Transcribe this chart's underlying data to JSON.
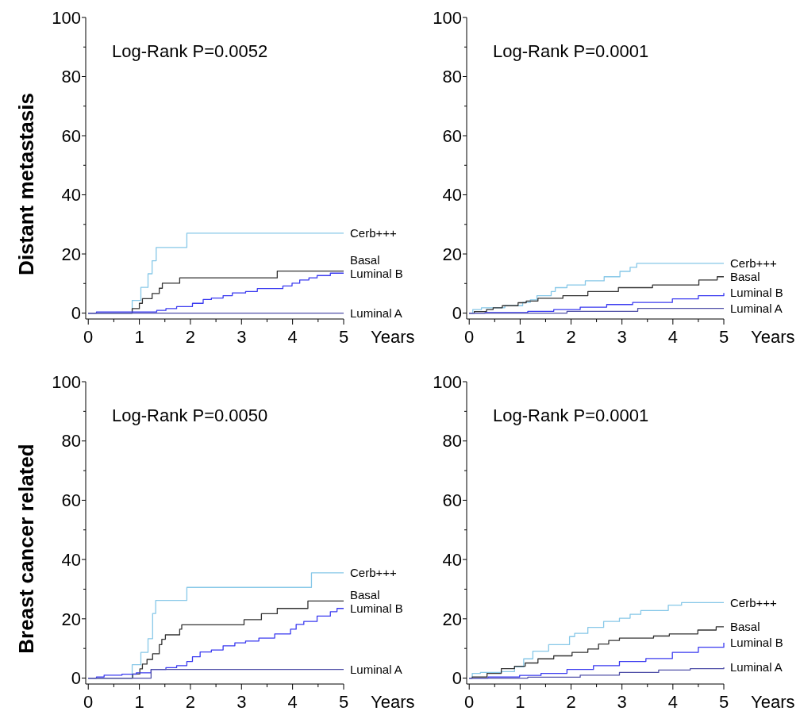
{
  "chart_data": [
    {
      "type": "step",
      "ylabel": "Distant metastasis",
      "xlabel": "Years",
      "annotations": [
        "Log-Rank  P=0.0052"
      ],
      "xlim": [
        -0.05,
        5
      ],
      "ylim": [
        -2,
        100
      ],
      "xticks": [
        0,
        {
          "value": 0.5,
          "label": null
        },
        1,
        {
          "value": 1.5,
          "label": null
        },
        2,
        {
          "value": 2.5,
          "label": null
        },
        3,
        {
          "value": 3.5,
          "label": null
        },
        4,
        {
          "value": 4.5,
          "label": null
        },
        5
      ],
      "yticks": [
        0,
        {
          "value": 10,
          "label": null
        },
        20,
        {
          "value": 30,
          "label": null
        },
        40,
        {
          "value": 50,
          "label": null
        },
        60,
        {
          "value": 70,
          "label": null
        },
        80,
        {
          "value": 90,
          "label": null
        },
        100
      ],
      "grid": false,
      "legend": false,
      "marker": "none",
      "line_style": "solid",
      "series": [
        {
          "name": "Cerb+++",
          "color": "#87c8e8",
          "x": [
            0,
            0.86,
            1.03,
            1.17,
            1.25,
            1.33,
            1.93,
            5
          ],
          "values": [
            0,
            4.3,
            8.7,
            13.3,
            17.7,
            22.2,
            27,
            27
          ]
        },
        {
          "name": "Basal",
          "color": "#333333",
          "x": [
            0,
            0.86,
            1.0,
            1.06,
            1.25,
            1.39,
            1.45,
            1.79,
            3.7,
            5
          ],
          "values": [
            0,
            1.5,
            3.3,
            4.9,
            6.6,
            8.4,
            10.1,
            11.9,
            14.2,
            14.2
          ]
        },
        {
          "name": "Luminal B",
          "color": "#3a3af0",
          "x": [
            0,
            0.16,
            1.34,
            1.52,
            1.73,
            2.04,
            2.25,
            2.41,
            2.64,
            2.82,
            3.08,
            3.31,
            3.81,
            3.99,
            4.14,
            4.32,
            4.48,
            4.74,
            5
          ],
          "values": [
            0,
            0.4,
            0.9,
            1.5,
            2.2,
            3.3,
            4.6,
            5.1,
            5.9,
            6.8,
            7.3,
            8.3,
            9.2,
            10.1,
            11.2,
            11.9,
            12.7,
            13.5,
            13.5
          ]
        },
        {
          "name": "Luminal A",
          "color": "#5050a8",
          "x": [
            0,
            5
          ],
          "values": [
            0,
            0
          ]
        }
      ]
    },
    {
      "type": "step",
      "xlabel": "Years",
      "annotations": [
        "Log-Rank  P=0.0001"
      ],
      "xlim": [
        -0.05,
        5
      ],
      "ylim": [
        -2,
        100
      ],
      "xticks": [
        0,
        {
          "value": 0.5,
          "label": null
        },
        1,
        {
          "value": 1.5,
          "label": null
        },
        2,
        {
          "value": 2.5,
          "label": null
        },
        3,
        {
          "value": 3.5,
          "label": null
        },
        4,
        {
          "value": 4.5,
          "label": null
        },
        5
      ],
      "yticks": [
        0,
        {
          "value": 10,
          "label": null
        },
        20,
        {
          "value": 30,
          "label": null
        },
        40,
        {
          "value": 50,
          "label": null
        },
        60,
        {
          "value": 70,
          "label": null
        },
        80,
        {
          "value": 90,
          "label": null
        },
        100
      ],
      "grid": false,
      "legend": false,
      "marker": "none",
      "line_style": "solid",
      "series": [
        {
          "name": "Cerb+++",
          "color": "#87c8e8",
          "x": [
            0,
            0.07,
            0.24,
            0.7,
            1.05,
            1.2,
            1.33,
            1.61,
            1.69,
            1.92,
            2.28,
            2.65,
            2.96,
            3.16,
            3.29,
            5
          ],
          "values": [
            0,
            1.2,
            1.8,
            2.5,
            3.6,
            4.5,
            5.9,
            7.3,
            8.6,
            9.5,
            10.9,
            12.3,
            14.1,
            15.5,
            16.8,
            16.8
          ]
        },
        {
          "name": "Basal",
          "color": "#333333",
          "x": [
            0,
            0.1,
            0.34,
            0.47,
            0.65,
            0.96,
            1.12,
            1.35,
            1.84,
            2.33,
            2.93,
            3.6,
            4.51,
            4.87,
            5
          ],
          "values": [
            0,
            0.5,
            1.2,
            1.8,
            2.5,
            3.5,
            4.1,
            5,
            5.9,
            7.3,
            8.6,
            9.5,
            11.2,
            12.3,
            12.3
          ]
        },
        {
          "name": "Luminal B",
          "color": "#3a3af0",
          "x": [
            0,
            0.31,
            1.15,
            1.66,
            2.18,
            2.7,
            3.21,
            3.99,
            4.5,
            5
          ],
          "values": [
            0,
            0.2,
            0.6,
            1.2,
            2,
            2.9,
            3.6,
            4.8,
            5.9,
            6.8
          ]
        },
        {
          "name": "Luminal A",
          "color": "#5050a8",
          "x": [
            0,
            1.92,
            3.31,
            5
          ],
          "values": [
            0,
            0.6,
            1.6,
            1.6
          ]
        }
      ]
    },
    {
      "type": "step",
      "ylabel": "Breast cancer related",
      "xlabel": "Years",
      "annotations": [
        "Log-Rank  P=0.0050"
      ],
      "xlim": [
        -0.05,
        5
      ],
      "ylim": [
        -2,
        100
      ],
      "xticks": [
        0,
        {
          "value": 0.5,
          "label": null
        },
        1,
        {
          "value": 1.5,
          "label": null
        },
        2,
        {
          "value": 2.5,
          "label": null
        },
        3,
        {
          "value": 3.5,
          "label": null
        },
        4,
        {
          "value": 4.5,
          "label": null
        },
        5
      ],
      "yticks": [
        0,
        {
          "value": 10,
          "label": null
        },
        20,
        {
          "value": 30,
          "label": null
        },
        40,
        {
          "value": 50,
          "label": null
        },
        60,
        {
          "value": 70,
          "label": null
        },
        80,
        {
          "value": 90,
          "label": null
        },
        100
      ],
      "grid": false,
      "legend": false,
      "marker": "none",
      "line_style": "solid",
      "series": [
        {
          "name": "Cerb+++",
          "color": "#87c8e8",
          "x": [
            0,
            0.86,
            1.03,
            1.17,
            1.26,
            1.32,
            1.93,
            4.37,
            5
          ],
          "values": [
            0,
            4.5,
            8.7,
            13.3,
            21.8,
            26.2,
            30.6,
            35.5,
            35.5
          ]
        },
        {
          "name": "Basal",
          "color": "#333333",
          "x": [
            0,
            0.87,
            1.01,
            1.06,
            1.15,
            1.26,
            1.39,
            1.44,
            1.51,
            1.79,
            1.83,
            3.05,
            3.39,
            3.7,
            4.3,
            5
          ],
          "values": [
            0,
            1.4,
            3.1,
            4.7,
            6.3,
            8.2,
            11.3,
            13.1,
            14.6,
            16.5,
            18,
            19.7,
            21.7,
            23.5,
            26,
            26
          ]
        },
        {
          "name": "Luminal B",
          "color": "#3a3af0",
          "x": [
            0,
            0.16,
            0.31,
            0.66,
            0.94,
            1.23,
            1.52,
            1.73,
            1.93,
            2.04,
            2.19,
            2.41,
            2.64,
            2.87,
            3.08,
            3.34,
            3.65,
            3.96,
            4.07,
            4.22,
            4.48,
            4.74,
            4.87,
            5
          ],
          "values": [
            0,
            0.4,
            1,
            1.3,
            1.8,
            2.9,
            3.5,
            4.2,
            5.6,
            7.2,
            8.8,
            9.5,
            10.9,
            11.9,
            12.5,
            13.5,
            14.9,
            16.5,
            18.1,
            19.1,
            20.9,
            22.4,
            23.5,
            23.5
          ]
        },
        {
          "name": "Luminal A",
          "color": "#5050a8",
          "x": [
            0,
            1.23,
            5
          ],
          "values": [
            0,
            2.9,
            2.9
          ]
        }
      ]
    },
    {
      "type": "step",
      "xlabel": "Years",
      "annotations": [
        "Log-Rank  P=0.0001"
      ],
      "xlim": [
        -0.05,
        5
      ],
      "ylim": [
        -2,
        100
      ],
      "xticks": [
        0,
        {
          "value": 0.5,
          "label": null
        },
        1,
        {
          "value": 1.5,
          "label": null
        },
        2,
        {
          "value": 2.5,
          "label": null
        },
        3,
        {
          "value": 3.5,
          "label": null
        },
        4,
        {
          "value": 4.5,
          "label": null
        },
        5
      ],
      "yticks": [
        0,
        {
          "value": 10,
          "label": null
        },
        20,
        {
          "value": 30,
          "label": null
        },
        40,
        {
          "value": 50,
          "label": null
        },
        60,
        {
          "value": 70,
          "label": null
        },
        80,
        {
          "value": 90,
          "label": null
        },
        100
      ],
      "grid": false,
      "legend": false,
      "marker": "none",
      "line_style": "solid",
      "series": [
        {
          "name": "Cerb+++",
          "color": "#87c8e8",
          "x": [
            0,
            0.06,
            0.22,
            0.63,
            0.89,
            1.07,
            1.25,
            1.56,
            1.97,
            2.07,
            2.33,
            2.64,
            2.95,
            3.16,
            3.37,
            3.91,
            4.17,
            5
          ],
          "values": [
            0,
            1.6,
            1.9,
            2.2,
            3.8,
            6.5,
            9.1,
            11.3,
            14,
            15.1,
            17.1,
            19.1,
            20.2,
            21.5,
            22.8,
            24.6,
            25.5,
            25.5
          ]
        },
        {
          "name": "Basal",
          "color": "#333333",
          "x": [
            0,
            0.06,
            0.35,
            0.63,
            0.89,
            1.1,
            1.35,
            1.66,
            2.02,
            2.33,
            2.54,
            2.74,
            2.95,
            3.62,
            3.93,
            4.49,
            4.85,
            5
          ],
          "values": [
            0,
            0.4,
            1.6,
            3.2,
            4,
            5.1,
            6.5,
            7.5,
            8.7,
            9.8,
            11.5,
            12.7,
            13.5,
            14.2,
            14.9,
            16.2,
            17.3,
            17.3
          ]
        },
        {
          "name": "Luminal B",
          "color": "#3a3af0",
          "x": [
            0,
            0.37,
            0.99,
            1.41,
            1.92,
            2.44,
            2.95,
            3.47,
            3.99,
            4.5,
            5
          ],
          "values": [
            0,
            0.4,
            0.9,
            1.6,
            2.9,
            4.2,
            5.6,
            6.6,
            8.7,
            10.4,
            11.9
          ]
        },
        {
          "name": "Luminal A",
          "color": "#5050a8",
          "x": [
            0,
            1.15,
            2.18,
            2.95,
            3.72,
            4.34,
            5
          ],
          "values": [
            0,
            0.3,
            1,
            1.9,
            2.7,
            3.2,
            3.6
          ]
        }
      ]
    }
  ]
}
